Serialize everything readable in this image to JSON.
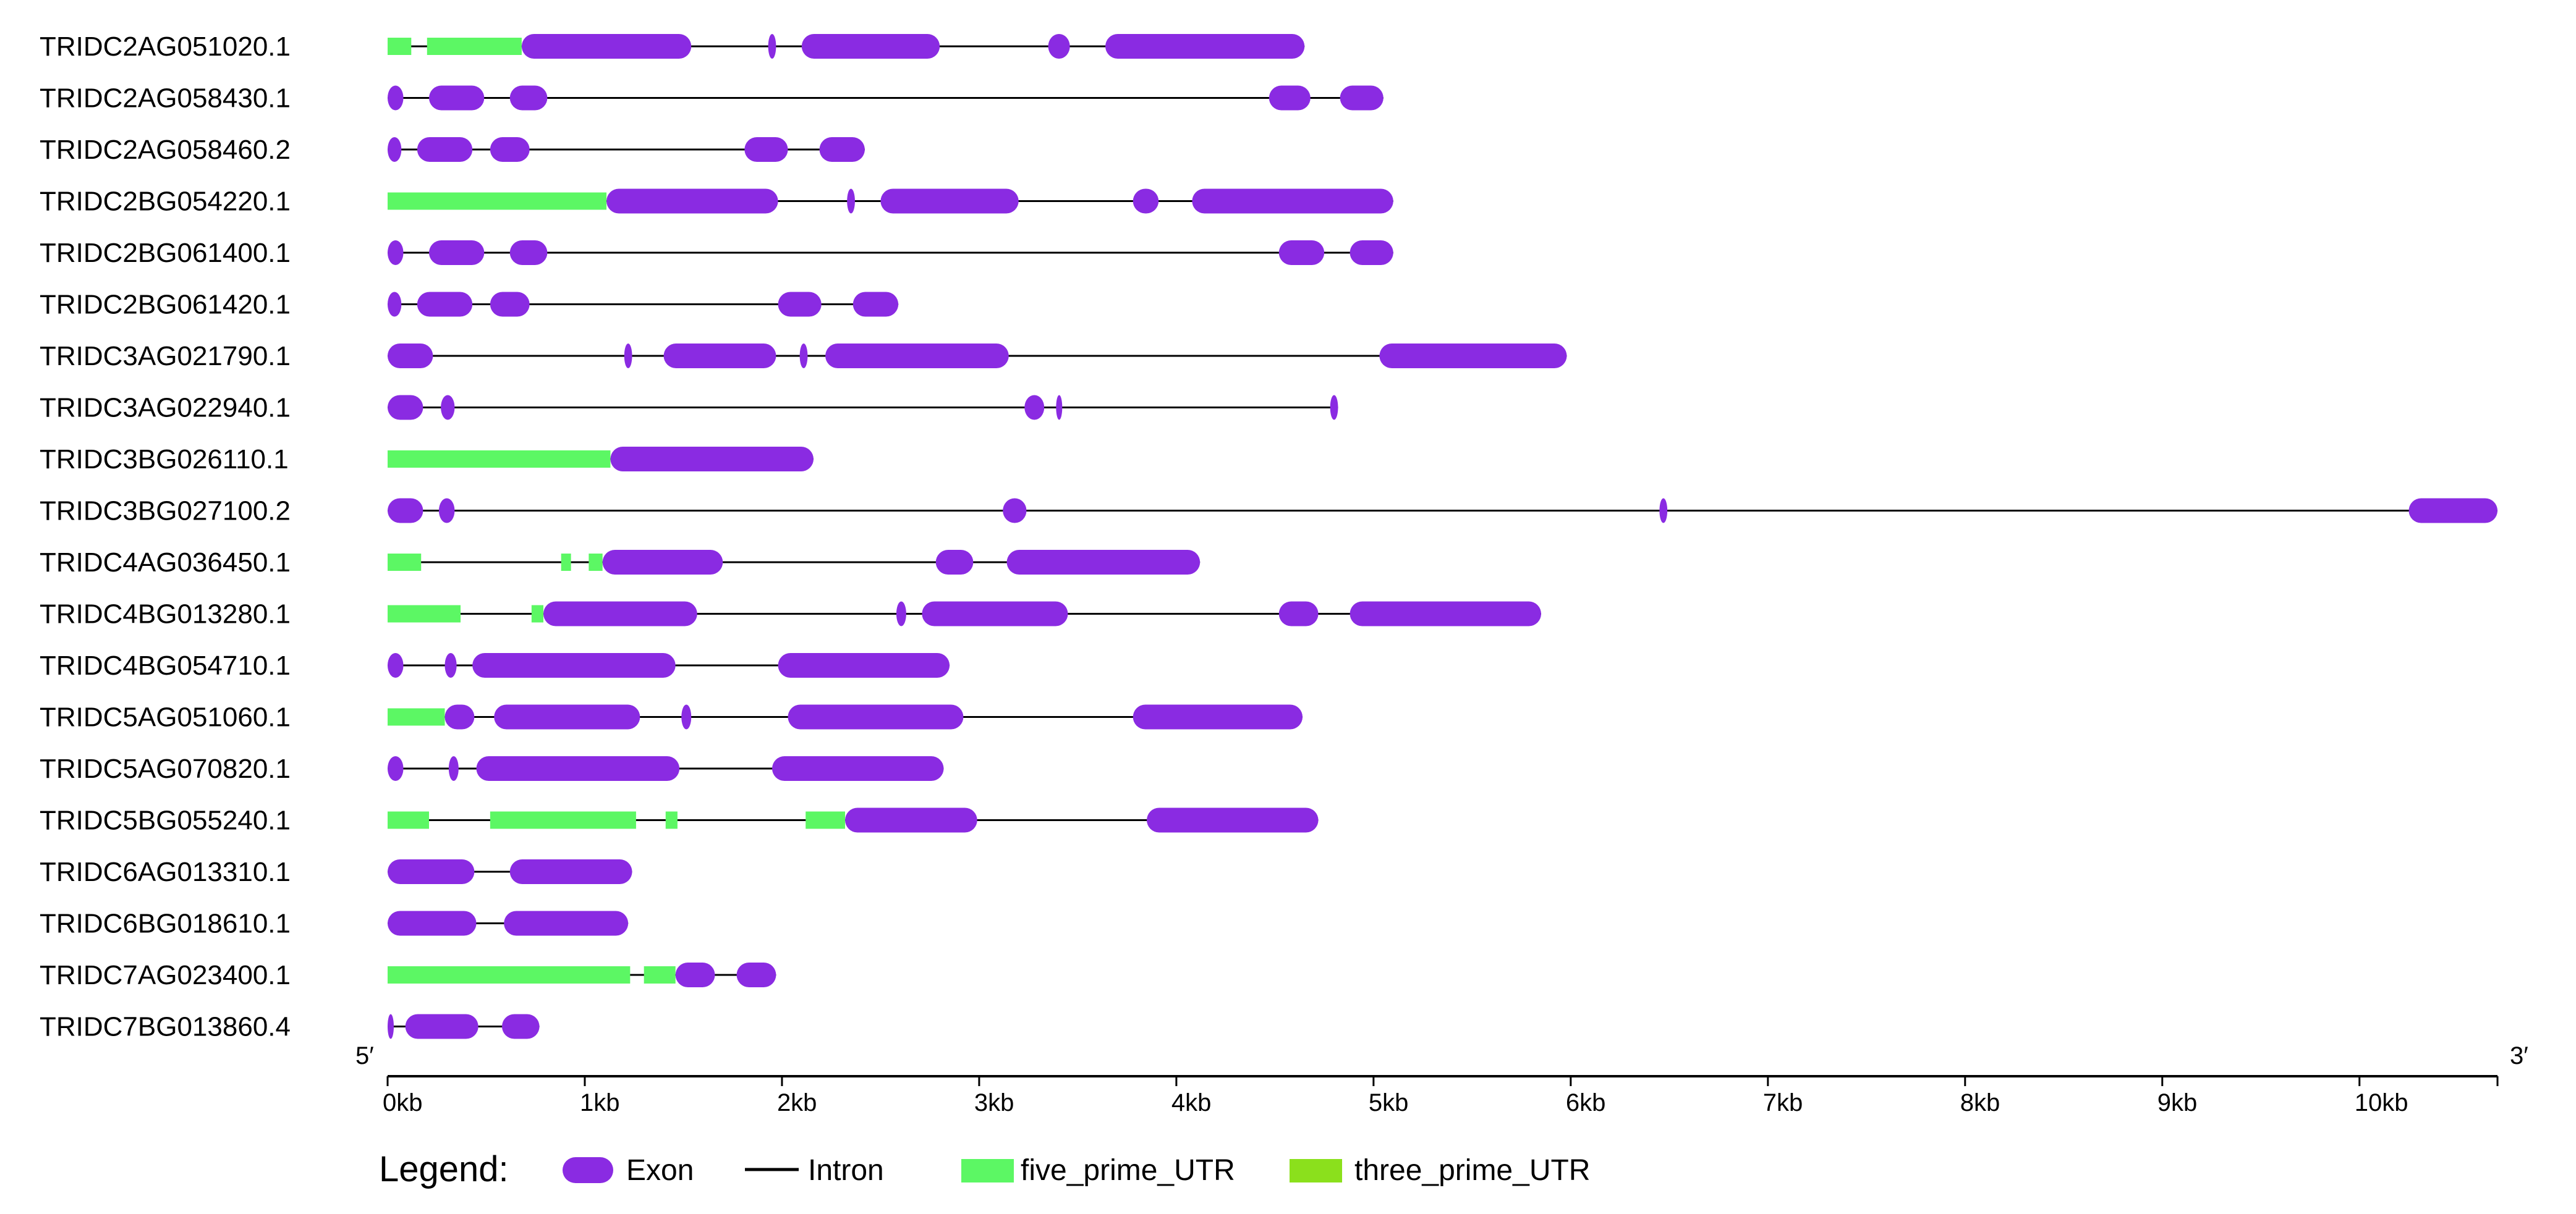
{
  "colors": {
    "exon": "#8a2be2",
    "intron": "#000000",
    "five_prime_utr": "#5cf764",
    "three_prime_utr": "#8be01c"
  },
  "axis": {
    "unit": "kb",
    "min": 0,
    "max": 10.7,
    "tick_labels": [
      "0kb",
      "1kb",
      "2kb",
      "3kb",
      "4kb",
      "5kb",
      "6kb",
      "7kb",
      "8kb",
      "9kb",
      "10kb"
    ],
    "tick_values": [
      0,
      1,
      2,
      3,
      4,
      5,
      6,
      7,
      8,
      9,
      10
    ],
    "start_label": "5′",
    "end_label": "3′"
  },
  "legend": {
    "title": "Legend:",
    "items": [
      {
        "key": "exon",
        "label": "Exon"
      },
      {
        "key": "intron",
        "label": "Intron"
      },
      {
        "key": "five_prime_utr",
        "label": "five_prime_UTR"
      },
      {
        "key": "three_prime_utr",
        "label": "three_prime_UTR"
      }
    ]
  },
  "chart_data": {
    "type": "gene_structure",
    "x_unit": "kb",
    "genes": [
      {
        "name": "TRIDC2AG051020.1",
        "length": 4.65,
        "utr5": [
          [
            0,
            0.12
          ],
          [
            0.2,
            0.68
          ]
        ],
        "exons": [
          [
            0.68,
            1.54
          ],
          [
            1.93,
            1.97
          ],
          [
            2.1,
            2.8
          ],
          [
            3.35,
            3.46
          ],
          [
            3.64,
            4.65
          ]
        ]
      },
      {
        "name": "TRIDC2AG058430.1",
        "length": 5.05,
        "utr5": [],
        "exons": [
          [
            0,
            0.08
          ],
          [
            0.21,
            0.49
          ],
          [
            0.62,
            0.81
          ],
          [
            4.47,
            4.68
          ],
          [
            4.83,
            5.05
          ]
        ]
      },
      {
        "name": "TRIDC2AG058460.2",
        "length": 2.42,
        "utr5": [],
        "exons": [
          [
            0,
            0.07
          ],
          [
            0.15,
            0.43
          ],
          [
            0.52,
            0.72
          ],
          [
            1.81,
            2.03
          ],
          [
            2.19,
            2.42
          ]
        ]
      },
      {
        "name": "TRIDC2BG054220.1",
        "length": 5.1,
        "utr5": [
          [
            0,
            1.11
          ]
        ],
        "exons": [
          [
            1.11,
            1.98
          ],
          [
            2.33,
            2.37
          ],
          [
            2.5,
            3.2
          ],
          [
            3.78,
            3.91
          ],
          [
            4.08,
            5.1
          ]
        ]
      },
      {
        "name": "TRIDC2BG061400.1",
        "length": 5.1,
        "utr5": [],
        "exons": [
          [
            0,
            0.08
          ],
          [
            0.21,
            0.49
          ],
          [
            0.62,
            0.81
          ],
          [
            4.52,
            4.75
          ],
          [
            4.88,
            5.1
          ]
        ]
      },
      {
        "name": "TRIDC2BG061420.1",
        "length": 2.59,
        "utr5": [],
        "exons": [
          [
            0,
            0.07
          ],
          [
            0.15,
            0.43
          ],
          [
            0.52,
            0.72
          ],
          [
            1.98,
            2.2
          ],
          [
            2.36,
            2.59
          ]
        ]
      },
      {
        "name": "TRIDC3AG021790.1",
        "length": 5.98,
        "utr5": [],
        "exons": [
          [
            0,
            0.23
          ],
          [
            1.2,
            1.24
          ],
          [
            1.4,
            1.97
          ],
          [
            2.09,
            2.13
          ],
          [
            2.22,
            3.15
          ],
          [
            5.03,
            5.98
          ]
        ]
      },
      {
        "name": "TRIDC3AG022940.1",
        "length": 4.82,
        "utr5": [],
        "exons": [
          [
            0,
            0.18
          ],
          [
            0.27,
            0.34
          ],
          [
            3.23,
            3.33
          ],
          [
            3.39,
            3.42
          ],
          [
            4.78,
            4.82
          ]
        ]
      },
      {
        "name": "TRIDC3BG026110.1",
        "length": 2.16,
        "utr5": [
          [
            0,
            1.13
          ]
        ],
        "exons": [
          [
            1.13,
            2.16
          ]
        ]
      },
      {
        "name": "TRIDC3BG027100.2",
        "length": 10.7,
        "utr5": [],
        "exons": [
          [
            0,
            0.18
          ],
          [
            0.26,
            0.34
          ],
          [
            3.12,
            3.24
          ],
          [
            6.45,
            6.49
          ],
          [
            10.25,
            10.7
          ]
        ]
      },
      {
        "name": "TRIDC4AG036450.1",
        "length": 4.12,
        "utr5": [
          [
            0,
            0.17
          ],
          [
            0.88,
            0.93
          ],
          [
            1.02,
            1.09
          ]
        ],
        "exons": [
          [
            1.09,
            1.7
          ],
          [
            2.78,
            2.97
          ],
          [
            3.14,
            4.12
          ]
        ]
      },
      {
        "name": "TRIDC4BG013280.1",
        "length": 5.85,
        "utr5": [
          [
            0,
            0.37
          ],
          [
            0.73,
            0.79
          ]
        ],
        "exons": [
          [
            0.79,
            1.57
          ],
          [
            2.58,
            2.63
          ],
          [
            2.71,
            3.45
          ],
          [
            4.52,
            4.72
          ],
          [
            4.88,
            5.85
          ]
        ]
      },
      {
        "name": "TRIDC4BG054710.1",
        "length": 2.85,
        "utr5": [],
        "exons": [
          [
            0,
            0.08
          ],
          [
            0.29,
            0.35
          ],
          [
            0.43,
            1.46
          ],
          [
            1.98,
            2.85
          ]
        ]
      },
      {
        "name": "TRIDC5AG051060.1",
        "length": 4.64,
        "utr5": [
          [
            0,
            0.29
          ]
        ],
        "exons": [
          [
            0.29,
            0.44
          ],
          [
            0.54,
            1.28
          ],
          [
            1.49,
            1.54
          ],
          [
            2.03,
            2.92
          ],
          [
            3.78,
            4.64
          ]
        ]
      },
      {
        "name": "TRIDC5AG070820.1",
        "length": 2.82,
        "utr5": [],
        "exons": [
          [
            0,
            0.08
          ],
          [
            0.31,
            0.36
          ],
          [
            0.45,
            1.48
          ],
          [
            1.95,
            2.82
          ]
        ]
      },
      {
        "name": "TRIDC5BG055240.1",
        "length": 4.72,
        "utr5": [
          [
            0,
            0.21
          ],
          [
            0.52,
            1.26
          ],
          [
            1.41,
            1.47
          ],
          [
            2.12,
            2.32
          ]
        ],
        "exons": [
          [
            2.32,
            2.99
          ],
          [
            3.85,
            4.72
          ]
        ]
      },
      {
        "name": "TRIDC6AG013310.1",
        "length": 1.24,
        "utr5": [],
        "exons": [
          [
            0,
            0.44
          ],
          [
            0.62,
            1.24
          ]
        ]
      },
      {
        "name": "TRIDC6BG018610.1",
        "length": 1.22,
        "utr5": [],
        "exons": [
          [
            0,
            0.45
          ],
          [
            0.59,
            1.22
          ]
        ]
      },
      {
        "name": "TRIDC7AG023400.1",
        "length": 1.97,
        "utr5": [
          [
            0,
            1.23
          ],
          [
            1.3,
            1.46
          ]
        ],
        "exons": [
          [
            1.46,
            1.66
          ],
          [
            1.77,
            1.97
          ]
        ]
      },
      {
        "name": "TRIDC7BG013860.4",
        "length": 0.77,
        "utr5": [],
        "exons": [
          [
            0,
            0.03
          ],
          [
            0.09,
            0.46
          ],
          [
            0.58,
            0.77
          ]
        ]
      }
    ]
  }
}
